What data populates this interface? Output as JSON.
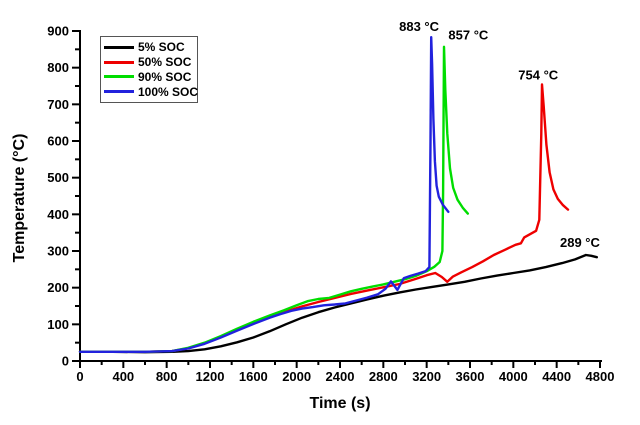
{
  "chart_data": {
    "type": "line",
    "title": "",
    "xlabel": "Time (s)",
    "ylabel": "Temperature (°C)",
    "xlim": [
      0,
      4800
    ],
    "ylim": [
      0,
      900
    ],
    "x_major_step": 400,
    "x_minor_step": 200,
    "y_major_step": 100,
    "y_minor_step": 50,
    "grid": false,
    "axis_color": "#000000",
    "legend": {
      "position": "top-left"
    },
    "series": [
      {
        "name": "5% SOC",
        "color": "#000000",
        "points": [
          [
            0,
            25
          ],
          [
            300,
            25
          ],
          [
            600,
            24
          ],
          [
            850,
            25
          ],
          [
            1000,
            27
          ],
          [
            1150,
            32
          ],
          [
            1300,
            40
          ],
          [
            1450,
            51
          ],
          [
            1600,
            64
          ],
          [
            1750,
            81
          ],
          [
            1900,
            100
          ],
          [
            2050,
            118
          ],
          [
            2200,
            133
          ],
          [
            2350,
            146
          ],
          [
            2500,
            157
          ],
          [
            2650,
            168
          ],
          [
            2800,
            178
          ],
          [
            2950,
            187
          ],
          [
            3100,
            195
          ],
          [
            3250,
            202
          ],
          [
            3400,
            209
          ],
          [
            3550,
            216
          ],
          [
            3700,
            225
          ],
          [
            3850,
            233
          ],
          [
            4000,
            240
          ],
          [
            4150,
            247
          ],
          [
            4300,
            256
          ],
          [
            4450,
            267
          ],
          [
            4570,
            277
          ],
          [
            4670,
            289
          ],
          [
            4720,
            287
          ],
          [
            4770,
            283
          ]
        ]
      },
      {
        "name": "50% SOC",
        "color": "#ee0000",
        "points": [
          [
            0,
            25
          ],
          [
            300,
            25
          ],
          [
            600,
            25
          ],
          [
            850,
            27
          ],
          [
            1000,
            35
          ],
          [
            1150,
            48
          ],
          [
            1300,
            65
          ],
          [
            1450,
            84
          ],
          [
            1600,
            103
          ],
          [
            1750,
            120
          ],
          [
            1900,
            135
          ],
          [
            2050,
            149
          ],
          [
            2200,
            161
          ],
          [
            2350,
            172
          ],
          [
            2500,
            183
          ],
          [
            2650,
            192
          ],
          [
            2800,
            201
          ],
          [
            2950,
            210
          ],
          [
            3100,
            224
          ],
          [
            3200,
            234
          ],
          [
            3280,
            240
          ],
          [
            3340,
            229
          ],
          [
            3390,
            216
          ],
          [
            3440,
            230
          ],
          [
            3520,
            242
          ],
          [
            3620,
            256
          ],
          [
            3720,
            272
          ],
          [
            3820,
            289
          ],
          [
            3920,
            303
          ],
          [
            4020,
            317
          ],
          [
            4070,
            321
          ],
          [
            4100,
            337
          ],
          [
            4160,
            347
          ],
          [
            4210,
            355
          ],
          [
            4240,
            385
          ],
          [
            4258,
            620
          ],
          [
            4265,
            754
          ],
          [
            4280,
            695
          ],
          [
            4305,
            590
          ],
          [
            4335,
            515
          ],
          [
            4370,
            468
          ],
          [
            4410,
            442
          ],
          [
            4455,
            426
          ],
          [
            4505,
            413
          ]
        ]
      },
      {
        "name": "90% SOC",
        "color": "#00dd00",
        "points": [
          [
            0,
            25
          ],
          [
            300,
            25
          ],
          [
            600,
            25
          ],
          [
            850,
            27
          ],
          [
            1000,
            36
          ],
          [
            1150,
            50
          ],
          [
            1300,
            68
          ],
          [
            1450,
            88
          ],
          [
            1600,
            107
          ],
          [
            1750,
            124
          ],
          [
            1880,
            138
          ],
          [
            2000,
            152
          ],
          [
            2100,
            163
          ],
          [
            2200,
            169
          ],
          [
            2300,
            172
          ],
          [
            2400,
            181
          ],
          [
            2500,
            190
          ],
          [
            2600,
            197
          ],
          [
            2700,
            203
          ],
          [
            2800,
            209
          ],
          [
            2900,
            216
          ],
          [
            3000,
            223
          ],
          [
            3100,
            232
          ],
          [
            3200,
            245
          ],
          [
            3270,
            257
          ],
          [
            3320,
            270
          ],
          [
            3345,
            300
          ],
          [
            3352,
            460
          ],
          [
            3360,
            857
          ],
          [
            3372,
            740
          ],
          [
            3390,
            620
          ],
          [
            3415,
            525
          ],
          [
            3445,
            472
          ],
          [
            3485,
            440
          ],
          [
            3535,
            417
          ],
          [
            3580,
            402
          ]
        ]
      },
      {
        "name": "100% SOC",
        "color": "#2222dd",
        "points": [
          [
            0,
            25
          ],
          [
            300,
            25
          ],
          [
            600,
            25
          ],
          [
            850,
            27
          ],
          [
            1000,
            34
          ],
          [
            1150,
            47
          ],
          [
            1300,
            64
          ],
          [
            1450,
            83
          ],
          [
            1600,
            101
          ],
          [
            1750,
            118
          ],
          [
            1850,
            128
          ],
          [
            1950,
            137
          ],
          [
            2050,
            143
          ],
          [
            2150,
            147
          ],
          [
            2250,
            152
          ],
          [
            2350,
            154
          ],
          [
            2450,
            157
          ],
          [
            2550,
            165
          ],
          [
            2650,
            173
          ],
          [
            2750,
            182
          ],
          [
            2820,
            197
          ],
          [
            2870,
            217
          ],
          [
            2930,
            194
          ],
          [
            2990,
            226
          ],
          [
            3050,
            232
          ],
          [
            3120,
            238
          ],
          [
            3190,
            245
          ],
          [
            3225,
            256
          ],
          [
            3235,
            600
          ],
          [
            3242,
            883
          ],
          [
            3250,
            810
          ],
          [
            3262,
            660
          ],
          [
            3276,
            545
          ],
          [
            3292,
            478
          ],
          [
            3312,
            448
          ],
          [
            3350,
            426
          ],
          [
            3400,
            407
          ]
        ]
      }
    ],
    "annotations": [
      {
        "text": "883 °C",
        "t": 3130,
        "temp": 911
      },
      {
        "text": "857 °C",
        "t": 3585,
        "temp": 888
      },
      {
        "text": "754 °C",
        "t": 4230,
        "temp": 779
      },
      {
        "text": "289 °C",
        "t": 4615,
        "temp": 322
      }
    ]
  }
}
